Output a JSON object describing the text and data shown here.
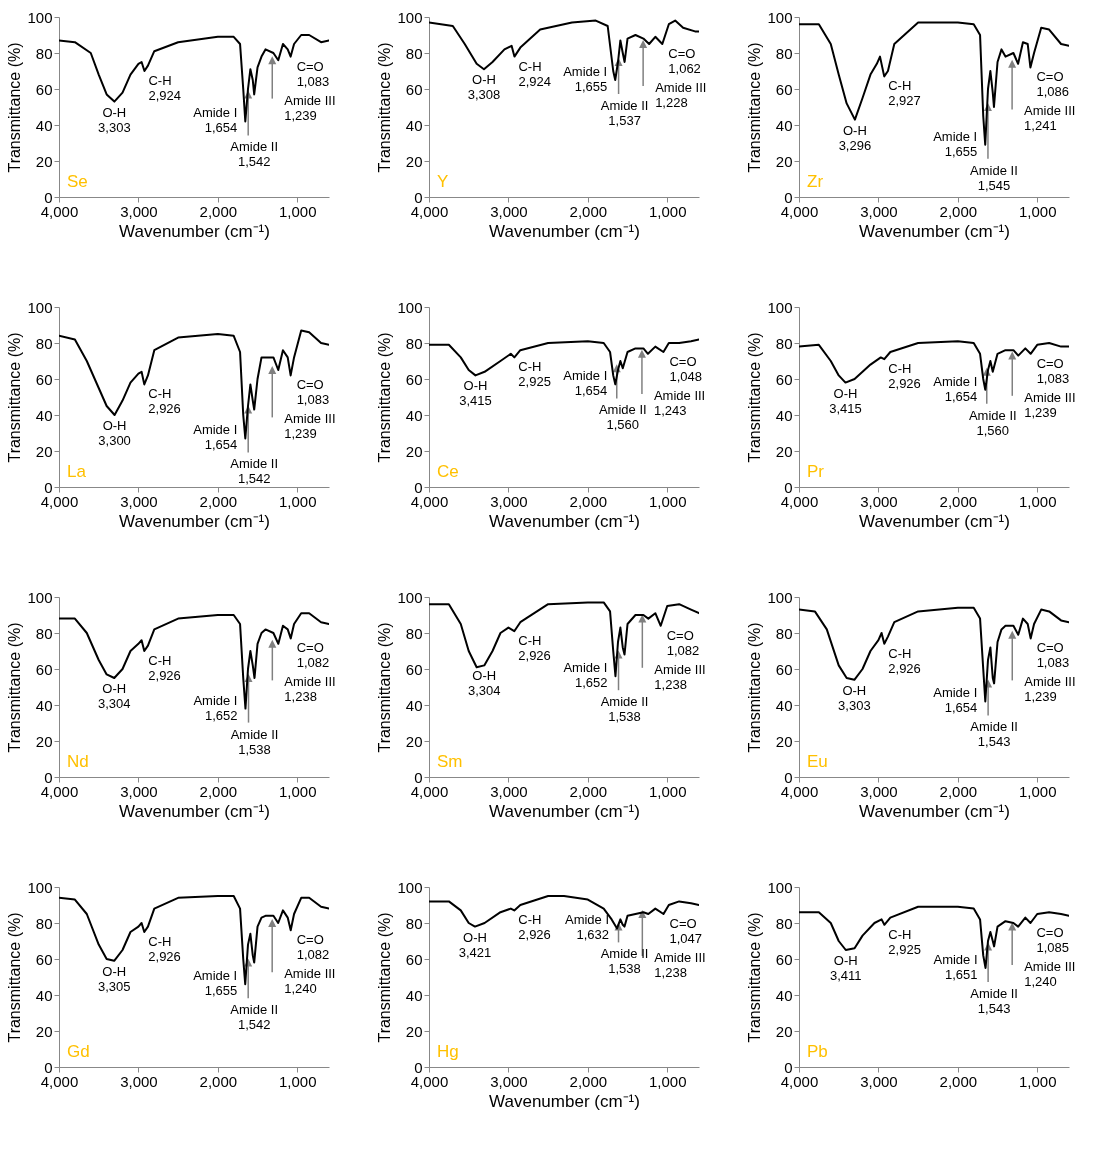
{
  "chart_data": [
    {
      "type": "line",
      "title": "Se",
      "xlabel": "Wavenumber (cm⁻¹)",
      "ylabel": "Transmittance (%)",
      "color": "#000000",
      "xlim": [
        4000,
        600
      ],
      "ylim": [
        0,
        100
      ],
      "xticks": [
        {
          "value": 4000,
          "label": "4,000"
        },
        {
          "value": 3000,
          "label": "3,000"
        },
        {
          "value": 2000,
          "label": "2,000"
        },
        {
          "value": 1000,
          "label": "1,000"
        }
      ],
      "yticks": [
        0,
        20,
        40,
        60,
        80,
        100
      ],
      "x": [
        4000,
        3800,
        3600,
        3500,
        3400,
        3303,
        3200,
        3100,
        3000,
        2960,
        2924,
        2880,
        2800,
        2500,
        2000,
        1800,
        1720,
        1680,
        1654,
        1620,
        1590,
        1560,
        1542,
        1500,
        1450,
        1400,
        1300,
        1239,
        1180,
        1120,
        1083,
        1040,
        950,
        850,
        700,
        600
      ],
      "values": [
        87,
        86,
        80,
        68,
        57,
        53,
        58,
        68,
        74,
        75,
        70,
        73,
        81,
        86,
        89,
        89,
        85,
        60,
        42,
        60,
        71,
        65,
        57,
        72,
        78,
        82,
        80,
        76,
        85,
        82,
        78,
        85,
        90,
        90,
        86,
        87
      ],
      "annotations": [
        {
          "text": "O-H\n3,303",
          "x": 3303,
          "y": 53
        },
        {
          "text": "C-H\n2,924",
          "x": 2924,
          "y": 70
        },
        {
          "text": "Amide I\n1,654",
          "x": 1654,
          "y": 42
        },
        {
          "text": "Amide II\n1,542",
          "x": 1542,
          "y": 57
        },
        {
          "text": "Amide III\n1,239",
          "x": 1239,
          "y": 76
        },
        {
          "text": "C=O\n1,083",
          "x": 1083,
          "y": 78
        }
      ]
    },
    {
      "type": "line",
      "title": "Y",
      "xlabel": "Wavenumber (cm⁻¹)",
      "ylabel": "Transmittance (%)",
      "color": "#000000",
      "xlim": [
        4000,
        600
      ],
      "ylim": [
        0,
        100
      ],
      "xticks": [
        {
          "value": 4000,
          "label": "4,000"
        },
        {
          "value": 3000,
          "label": "3,000"
        },
        {
          "value": 2000,
          "label": "2,000"
        },
        {
          "value": 1000,
          "label": "1,000"
        }
      ],
      "yticks": [
        0,
        20,
        40,
        60,
        80,
        100
      ],
      "x": [
        4000,
        3700,
        3550,
        3400,
        3308,
        3200,
        3050,
        2960,
        2924,
        2850,
        2600,
        2200,
        1900,
        1750,
        1680,
        1655,
        1620,
        1590,
        1560,
        1537,
        1500,
        1400,
        1300,
        1228,
        1150,
        1062,
        980,
        900,
        800,
        650,
        600
      ],
      "values": [
        97,
        95,
        85,
        74,
        71,
        75,
        82,
        84,
        78,
        83,
        93,
        97,
        98,
        95,
        70,
        65,
        75,
        87,
        80,
        75,
        88,
        90,
        88,
        85,
        89,
        85,
        96,
        98,
        94,
        92,
        92
      ],
      "annotations": [
        {
          "text": "O-H\n3,308",
          "x": 3308,
          "y": 71
        },
        {
          "text": "C-H\n2,924",
          "x": 2924,
          "y": 78
        },
        {
          "text": "Amide I\n1,655",
          "x": 1655,
          "y": 65
        },
        {
          "text": "Amide II\n1,537",
          "x": 1537,
          "y": 75
        },
        {
          "text": "Amide III\n1,228",
          "x": 1228,
          "y": 85
        },
        {
          "text": "C=O\n1,062",
          "x": 1062,
          "y": 85
        }
      ]
    },
    {
      "type": "line",
      "title": "Zr",
      "xlabel": "Wavenumber (cm⁻¹)",
      "ylabel": "Transmittance (%)",
      "color": "#000000",
      "xlim": [
        4000,
        600
      ],
      "ylim": [
        0,
        100
      ],
      "xticks": [
        {
          "value": 4000,
          "label": "4,000"
        },
        {
          "value": 3000,
          "label": "3,000"
        },
        {
          "value": 2000,
          "label": "2,000"
        },
        {
          "value": 1000,
          "label": "1,000"
        }
      ],
      "yticks": [
        0,
        20,
        40,
        60,
        80,
        100
      ],
      "x": [
        4000,
        3750,
        3600,
        3500,
        3400,
        3296,
        3200,
        3100,
        3020,
        2980,
        2927,
        2880,
        2800,
        2500,
        2000,
        1800,
        1720,
        1680,
        1655,
        1620,
        1590,
        1560,
        1545,
        1500,
        1450,
        1400,
        1300,
        1241,
        1180,
        1120,
        1086,
        1040,
        950,
        850,
        700,
        600
      ],
      "values": [
        96,
        96,
        85,
        68,
        52,
        43,
        55,
        68,
        74,
        78,
        67,
        70,
        85,
        97,
        97,
        96,
        90,
        45,
        29,
        60,
        70,
        58,
        50,
        75,
        82,
        78,
        80,
        74,
        86,
        85,
        72,
        80,
        94,
        93,
        85,
        84
      ],
      "annotations": [
        {
          "text": "O-H\n3,296",
          "x": 3296,
          "y": 43
        },
        {
          "text": "C-H\n2,927",
          "x": 2927,
          "y": 67
        },
        {
          "text": "Amide I\n1,655",
          "x": 1655,
          "y": 29
        },
        {
          "text": "Amide II\n1,545",
          "x": 1545,
          "y": 50
        },
        {
          "text": "Amide III\n1,241",
          "x": 1241,
          "y": 74
        },
        {
          "text": "C=O\n1,086",
          "x": 1086,
          "y": 72
        }
      ]
    },
    {
      "type": "line",
      "title": "La",
      "xlabel": "Wavenumber (cm⁻¹)",
      "ylabel": "Transmittance (%)",
      "color": "#000000",
      "xlim": [
        4000,
        600
      ],
      "ylim": [
        0,
        100
      ],
      "xticks": [
        {
          "value": 4000,
          "label": "4,000"
        },
        {
          "value": 3000,
          "label": "3,000"
        },
        {
          "value": 2000,
          "label": "2,000"
        },
        {
          "value": 1000,
          "label": "1,000"
        }
      ],
      "yticks": [
        0,
        20,
        40,
        60,
        80,
        100
      ],
      "x": [
        4000,
        3800,
        3650,
        3500,
        3400,
        3300,
        3200,
        3100,
        3000,
        2960,
        2926,
        2880,
        2800,
        2500,
        2000,
        1800,
        1720,
        1680,
        1654,
        1620,
        1590,
        1560,
        1542,
        1500,
        1450,
        1400,
        1300,
        1239,
        1180,
        1120,
        1083,
        1040,
        950,
        850,
        700,
        600
      ],
      "values": [
        84,
        82,
        70,
        55,
        45,
        40,
        48,
        58,
        63,
        64,
        57,
        62,
        76,
        83,
        85,
        84,
        75,
        40,
        27,
        45,
        57,
        48,
        43,
        60,
        72,
        72,
        72,
        65,
        76,
        72,
        62,
        72,
        87,
        86,
        80,
        79
      ],
      "annotations": [
        {
          "text": "O-H\n3,300",
          "x": 3300,
          "y": 40
        },
        {
          "text": "C-H\n2,926",
          "x": 2926,
          "y": 57
        },
        {
          "text": "Amide I\n1,654",
          "x": 1654,
          "y": 27
        },
        {
          "text": "Amide II\n1,542",
          "x": 1542,
          "y": 43
        },
        {
          "text": "Amide III\n1,239",
          "x": 1239,
          "y": 65
        },
        {
          "text": "C=O\n1,083",
          "x": 1083,
          "y": 62
        }
      ]
    },
    {
      "type": "line",
      "title": "Ce",
      "xlabel": "Wavenumber (cm⁻¹)",
      "ylabel": "Transmittance (%)",
      "color": "#000000",
      "xlim": [
        4000,
        600
      ],
      "ylim": [
        0,
        100
      ],
      "xticks": [
        {
          "value": 4000,
          "label": "4,000"
        },
        {
          "value": 3000,
          "label": "3,000"
        },
        {
          "value": 2000,
          "label": "2,000"
        },
        {
          "value": 1000,
          "label": "1,000"
        }
      ],
      "yticks": [
        0,
        20,
        40,
        60,
        80,
        100
      ],
      "x": [
        4000,
        3750,
        3600,
        3500,
        3415,
        3300,
        3100,
        2970,
        2925,
        2850,
        2500,
        2000,
        1800,
        1720,
        1680,
        1654,
        1620,
        1590,
        1560,
        1500,
        1400,
        1300,
        1243,
        1150,
        1048,
        980,
        850,
        700,
        600
      ],
      "values": [
        79,
        79,
        72,
        65,
        62,
        64,
        70,
        74,
        72,
        76,
        80,
        81,
        80,
        75,
        62,
        57,
        65,
        70,
        66,
        75,
        77,
        77,
        74,
        78,
        75,
        80,
        80,
        81,
        82
      ],
      "annotations": [
        {
          "text": "O-H\n3,415",
          "x": 3415,
          "y": 62
        },
        {
          "text": "C-H\n2,925",
          "x": 2925,
          "y": 72
        },
        {
          "text": "Amide I\n1,654",
          "x": 1654,
          "y": 57
        },
        {
          "text": "Amide II\n1,560",
          "x": 1560,
          "y": 66
        },
        {
          "text": "Amide III\n1,243",
          "x": 1243,
          "y": 74
        },
        {
          "text": "C=O\n1,048",
          "x": 1048,
          "y": 75
        }
      ]
    },
    {
      "type": "line",
      "title": "Pr",
      "xlabel": "Wavenumber (cm⁻¹)",
      "ylabel": "Transmittance (%)",
      "color": "#000000",
      "xlim": [
        4000,
        600
      ],
      "ylim": [
        0,
        100
      ],
      "xticks": [
        {
          "value": 4000,
          "label": "4,000"
        },
        {
          "value": 3000,
          "label": "3,000"
        },
        {
          "value": 2000,
          "label": "2,000"
        },
        {
          "value": 1000,
          "label": "1,000"
        }
      ],
      "yticks": [
        0,
        20,
        40,
        60,
        80,
        100
      ],
      "x": [
        4000,
        3750,
        3600,
        3500,
        3415,
        3300,
        3100,
        2970,
        2926,
        2850,
        2500,
        2000,
        1800,
        1720,
        1680,
        1654,
        1620,
        1590,
        1560,
        1500,
        1400,
        1300,
        1239,
        1150,
        1083,
        1000,
        850,
        700,
        600
      ],
      "values": [
        78,
        79,
        70,
        62,
        58,
        60,
        68,
        72,
        71,
        75,
        80,
        81,
        80,
        74,
        60,
        54,
        65,
        70,
        64,
        74,
        76,
        76,
        73,
        77,
        74,
        79,
        80,
        78,
        78
      ],
      "annotations": [
        {
          "text": "O-H\n3,415",
          "x": 3415,
          "y": 58
        },
        {
          "text": "C-H\n2,926",
          "x": 2926,
          "y": 71
        },
        {
          "text": "Amide I\n1,654",
          "x": 1654,
          "y": 54
        },
        {
          "text": "Amide II\n1,560",
          "x": 1560,
          "y": 64
        },
        {
          "text": "Amide III\n1,239",
          "x": 1239,
          "y": 73
        },
        {
          "text": "C=O\n1,083",
          "x": 1083,
          "y": 74
        }
      ]
    },
    {
      "type": "line",
      "title": "Nd",
      "xlabel": "Wavenumber (cm⁻¹)",
      "ylabel": "Transmittance (%)",
      "color": "#000000",
      "xlim": [
        4000,
        600
      ],
      "ylim": [
        0,
        100
      ],
      "xticks": [
        {
          "value": 4000,
          "label": "4,000"
        },
        {
          "value": 3000,
          "label": "3,000"
        },
        {
          "value": 2000,
          "label": "2,000"
        },
        {
          "value": 1000,
          "label": "1,000"
        }
      ],
      "yticks": [
        0,
        20,
        40,
        60,
        80,
        100
      ],
      "x": [
        4000,
        3800,
        3650,
        3500,
        3400,
        3304,
        3200,
        3100,
        3000,
        2960,
        2926,
        2880,
        2800,
        2500,
        2000,
        1800,
        1720,
        1680,
        1652,
        1620,
        1590,
        1560,
        1538,
        1500,
        1450,
        1400,
        1300,
        1238,
        1180,
        1120,
        1082,
        1040,
        950,
        850,
        700,
        600
      ],
      "values": [
        88,
        88,
        80,
        65,
        57,
        55,
        60,
        70,
        74,
        76,
        70,
        73,
        82,
        88,
        90,
        90,
        85,
        55,
        38,
        60,
        70,
        62,
        55,
        74,
        80,
        82,
        80,
        74,
        84,
        82,
        77,
        85,
        91,
        91,
        86,
        85
      ],
      "annotations": [
        {
          "text": "O-H\n3,304",
          "x": 3304,
          "y": 55
        },
        {
          "text": "C-H\n2,926",
          "x": 2926,
          "y": 70
        },
        {
          "text": "Amide I\n1,652",
          "x": 1652,
          "y": 38
        },
        {
          "text": "Amide II\n1,538",
          "x": 1538,
          "y": 55
        },
        {
          "text": "Amide III\n1,238",
          "x": 1238,
          "y": 74
        },
        {
          "text": "C=O\n1,082",
          "x": 1082,
          "y": 77
        }
      ]
    },
    {
      "type": "line",
      "title": "Sm",
      "xlabel": "Wavenumber (cm⁻¹)",
      "ylabel": "Transmittance (%)",
      "color": "#000000",
      "xlim": [
        4000,
        600
      ],
      "ylim": [
        0,
        100
      ],
      "xticks": [
        {
          "value": 4000,
          "label": "4,000"
        },
        {
          "value": 3000,
          "label": "3,000"
        },
        {
          "value": 2000,
          "label": "2,000"
        },
        {
          "value": 1000,
          "label": "1,000"
        }
      ],
      "yticks": [
        0,
        20,
        40,
        60,
        80,
        100
      ],
      "x": [
        4000,
        3750,
        3600,
        3500,
        3400,
        3304,
        3200,
        3100,
        3000,
        2926,
        2850,
        2500,
        2000,
        1800,
        1720,
        1680,
        1652,
        1620,
        1590,
        1560,
        1538,
        1500,
        1400,
        1300,
        1238,
        1150,
        1082,
        1000,
        850,
        700,
        600
      ],
      "values": [
        96,
        96,
        85,
        70,
        61,
        62,
        70,
        80,
        83,
        81,
        86,
        96,
        97,
        97,
        92,
        70,
        56,
        75,
        83,
        72,
        68,
        85,
        90,
        90,
        88,
        91,
        84,
        95,
        96,
        93,
        91
      ],
      "annotations": [
        {
          "text": "O-H\n3,304",
          "x": 3304,
          "y": 62
        },
        {
          "text": "C-H\n2,926",
          "x": 2926,
          "y": 81
        },
        {
          "text": "Amide I\n1,652",
          "x": 1652,
          "y": 56
        },
        {
          "text": "Amide II\n1,538",
          "x": 1538,
          "y": 68
        },
        {
          "text": "Amide III\n1,238",
          "x": 1238,
          "y": 88
        },
        {
          "text": "C=O\n1,082",
          "x": 1082,
          "y": 84
        }
      ]
    },
    {
      "type": "line",
      "title": "Eu",
      "xlabel": "Wavenumber (cm⁻¹)",
      "ylabel": "Transmittance (%)",
      "color": "#000000",
      "xlim": [
        4000,
        600
      ],
      "ylim": [
        0,
        100
      ],
      "xticks": [
        {
          "value": 4000,
          "label": "4,000"
        },
        {
          "value": 3000,
          "label": "3,000"
        },
        {
          "value": 2000,
          "label": "2,000"
        },
        {
          "value": 1000,
          "label": "1,000"
        }
      ],
      "yticks": [
        0,
        20,
        40,
        60,
        80,
        100
      ],
      "x": [
        4000,
        3800,
        3650,
        3500,
        3400,
        3303,
        3200,
        3100,
        3000,
        2960,
        2926,
        2880,
        2800,
        2500,
        2000,
        1800,
        1720,
        1680,
        1654,
        1620,
        1590,
        1560,
        1543,
        1500,
        1450,
        1400,
        1300,
        1239,
        1180,
        1120,
        1083,
        1040,
        950,
        850,
        700,
        600
      ],
      "values": [
        93,
        92,
        82,
        62,
        55,
        54,
        60,
        70,
        76,
        80,
        74,
        78,
        86,
        92,
        94,
        94,
        88,
        60,
        42,
        65,
        72,
        55,
        52,
        75,
        82,
        84,
        84,
        79,
        88,
        85,
        77,
        85,
        93,
        92,
        87,
        86
      ],
      "annotations": [
        {
          "text": "O-H\n3,303",
          "x": 3303,
          "y": 54
        },
        {
          "text": "C-H\n2,926",
          "x": 2926,
          "y": 74
        },
        {
          "text": "Amide I\n1,654",
          "x": 1654,
          "y": 42
        },
        {
          "text": "Amide II\n1,543",
          "x": 1543,
          "y": 52
        },
        {
          "text": "Amide III\n1,239",
          "x": 1239,
          "y": 79
        },
        {
          "text": "C=O\n1,083",
          "x": 1083,
          "y": 77
        }
      ]
    },
    {
      "type": "line",
      "title": "Gd",
      "ylabel": "Transmittance (%)",
      "color": "#000000",
      "xlim": [
        4000,
        600
      ],
      "ylim": [
        0,
        100
      ],
      "xticks": [
        {
          "value": 4000,
          "label": "4,000"
        },
        {
          "value": 3000,
          "label": "3,000"
        },
        {
          "value": 2000,
          "label": "2,000"
        },
        {
          "value": 1000,
          "label": "1,000"
        }
      ],
      "yticks": [
        0,
        20,
        40,
        60,
        80,
        100
      ],
      "x": [
        4000,
        3800,
        3650,
        3500,
        3400,
        3305,
        3200,
        3100,
        3000,
        2960,
        2926,
        2880,
        2800,
        2500,
        2000,
        1800,
        1720,
        1680,
        1655,
        1620,
        1590,
        1560,
        1542,
        1500,
        1450,
        1400,
        1300,
        1240,
        1180,
        1120,
        1082,
        1040,
        950,
        850,
        700,
        600
      ],
      "values": [
        94,
        93,
        85,
        68,
        60,
        59,
        65,
        75,
        78,
        80,
        75,
        78,
        88,
        94,
        95,
        95,
        88,
        60,
        46,
        68,
        74,
        62,
        58,
        78,
        83,
        84,
        84,
        80,
        87,
        83,
        76,
        85,
        94,
        94,
        89,
        88
      ],
      "annotations": [
        {
          "text": "O-H\n3,305",
          "x": 3305,
          "y": 59
        },
        {
          "text": "C-H\n2,926",
          "x": 2926,
          "y": 75
        },
        {
          "text": "Amide I\n1,655",
          "x": 1655,
          "y": 46
        },
        {
          "text": "Amide II\n1,542",
          "x": 1542,
          "y": 58
        },
        {
          "text": "Amide III\n1,240",
          "x": 1240,
          "y": 80
        },
        {
          "text": "C=O\n1,082",
          "x": 1082,
          "y": 76
        }
      ]
    },
    {
      "type": "line",
      "title": "Hg",
      "xlabel": "Wavenumber (cm⁻¹)",
      "ylabel": "Transmittance (%)",
      "color": "#000000",
      "xlim": [
        4000,
        600
      ],
      "ylim": [
        0,
        100
      ],
      "xticks": [
        {
          "value": 4000,
          "label": "4,000"
        },
        {
          "value": 3000,
          "label": "3,000"
        },
        {
          "value": 2000,
          "label": "2,000"
        },
        {
          "value": 1000,
          "label": "1,000"
        }
      ],
      "yticks": [
        0,
        20,
        40,
        60,
        80,
        100
      ],
      "x": [
        4000,
        3750,
        3600,
        3500,
        3421,
        3300,
        3100,
        2970,
        2926,
        2850,
        2500,
        2300,
        2000,
        1800,
        1700,
        1632,
        1590,
        1560,
        1538,
        1500,
        1400,
        1300,
        1238,
        1150,
        1047,
        980,
        850,
        700,
        600
      ],
      "values": [
        92,
        92,
        87,
        80,
        78,
        80,
        86,
        88,
        87,
        90,
        95,
        95,
        93,
        88,
        82,
        77,
        82,
        79,
        78,
        84,
        85,
        86,
        85,
        88,
        85,
        90,
        92,
        91,
        90
      ],
      "annotations": [
        {
          "text": "O-H\n3,421",
          "x": 3421,
          "y": 78
        },
        {
          "text": "C-H\n2,926",
          "x": 2926,
          "y": 87
        },
        {
          "text": "Amide I\n1,632",
          "x": 1632,
          "y": 77
        },
        {
          "text": "Amide II\n1,538",
          "x": 1538,
          "y": 78
        },
        {
          "text": "Amide III\n1,238",
          "x": 1238,
          "y": 85
        },
        {
          "text": "C=O\n1,047",
          "x": 1047,
          "y": 85
        }
      ]
    },
    {
      "type": "line",
      "title": "Pb",
      "ylabel": "Transmittance (%)",
      "color": "#000000",
      "xlim": [
        4000,
        600
      ],
      "ylim": [
        0,
        100
      ],
      "xticks": [
        {
          "value": 4000,
          "label": "4,000"
        },
        {
          "value": 3000,
          "label": "3,000"
        },
        {
          "value": 2000,
          "label": "2,000"
        },
        {
          "value": 1000,
          "label": "1,000"
        }
      ],
      "yticks": [
        0,
        20,
        40,
        60,
        80,
        100
      ],
      "x": [
        4000,
        3750,
        3600,
        3500,
        3411,
        3300,
        3200,
        3050,
        2960,
        2925,
        2850,
        2500,
        2000,
        1800,
        1720,
        1680,
        1651,
        1620,
        1590,
        1560,
        1543,
        1500,
        1400,
        1300,
        1240,
        1150,
        1085,
        1000,
        850,
        700,
        600
      ],
      "values": [
        86,
        86,
        80,
        70,
        65,
        66,
        73,
        80,
        82,
        79,
        83,
        89,
        89,
        88,
        82,
        62,
        55,
        70,
        75,
        70,
        67,
        78,
        81,
        80,
        78,
        83,
        80,
        85,
        86,
        85,
        84
      ],
      "annotations": [
        {
          "text": "O-H\n3,411",
          "x": 3411,
          "y": 65
        },
        {
          "text": "C-H\n2,925",
          "x": 2925,
          "y": 79
        },
        {
          "text": "Amide I\n1,651",
          "x": 1651,
          "y": 55
        },
        {
          "text": "Amide II\n1,543",
          "x": 1543,
          "y": 67
        },
        {
          "text": "Amide III\n1,240",
          "x": 1240,
          "y": 78
        },
        {
          "text": "C=O\n1,085",
          "x": 1085,
          "y": 80
        }
      ]
    }
  ]
}
